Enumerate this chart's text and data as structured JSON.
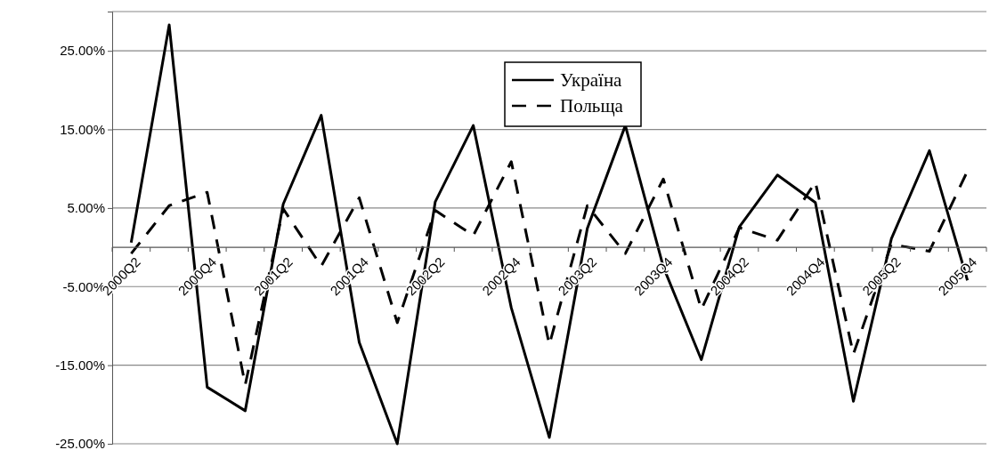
{
  "chart_data": {
    "type": "line",
    "categories": [
      "2000Q2",
      null,
      "2000Q4",
      null,
      "2001Q2",
      null,
      "2001Q4",
      null,
      "2002Q2",
      null,
      "2002Q4",
      null,
      "2003Q2",
      null,
      "2003Q4",
      null,
      "2004Q2",
      null,
      "2004Q4",
      null,
      "2005Q2",
      null,
      "2005Q4"
    ],
    "series": [
      {
        "name": "Україна",
        "color": "#000000",
        "line_style": "solid",
        "values": [
          0.6,
          28.3,
          -17.8,
          -20.8,
          5.5,
          16.8,
          -12.1,
          -25,
          5.8,
          15.5,
          -7.7,
          -24.2,
          2.4,
          15.5,
          -2.5,
          -14.3,
          2.6,
          9.2,
          5.7,
          -19.6,
          1.1,
          12.3,
          -4.2
        ]
      },
      {
        "name": "Польща",
        "color": "#000000",
        "line_style": "dashed",
        "values": [
          -0.8,
          5.3,
          7.0,
          -17.5,
          4.9,
          -2.4,
          6.3,
          -9.6,
          4.7,
          1.5,
          10.9,
          -12.4,
          5.3,
          -0.8,
          8.7,
          -7.9,
          2.5,
          0.9,
          8.3,
          -13.6,
          0.4,
          -0.5,
          9.7
        ]
      }
    ],
    "ylim": [
      -25,
      30
    ],
    "yticks": [
      {
        "value": -25,
        "label": "-25.00%"
      },
      {
        "value": -15,
        "label": "-15.00%"
      },
      {
        "value": -5,
        "label": "-5.00%"
      },
      {
        "value": 5,
        "label": "5.00%"
      },
      {
        "value": 15,
        "label": "15.00%"
      },
      {
        "value": 25,
        "label": "25.00%"
      }
    ],
    "grid": "y",
    "legend": "top",
    "marker": "none"
  }
}
